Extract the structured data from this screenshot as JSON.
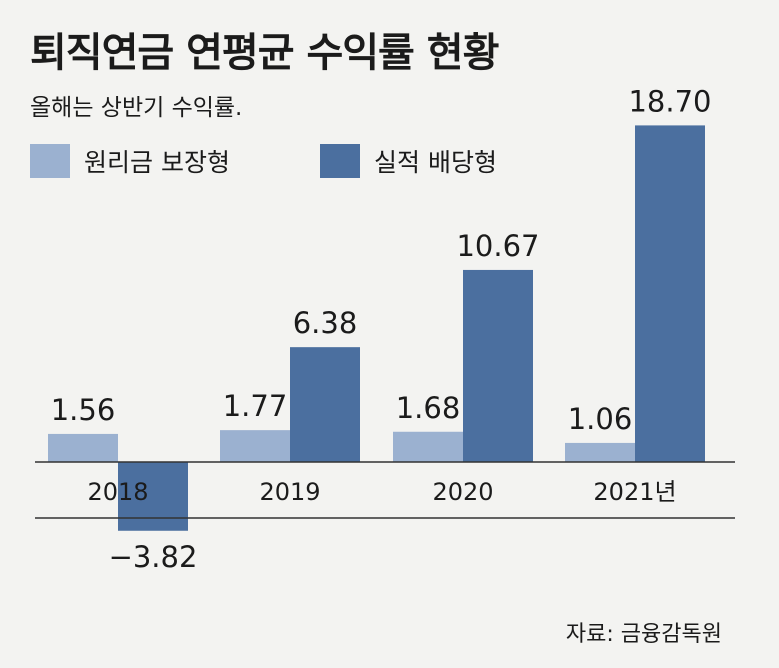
{
  "title": "퇴직연금 연평균 수익률 현황",
  "subtitle": "올해는 상반기 수익률.",
  "source": "자료: 금융감독원",
  "colors": {
    "background": "#f3f3f1",
    "principal_guaranteed": "#9bb1d0",
    "performance_dividend": "#4b6f9f",
    "axis": "#333333",
    "text": "#1b1b1b"
  },
  "chart_data": {
    "type": "bar",
    "categories": [
      "2018",
      "2019",
      "2020",
      "2021년"
    ],
    "series": [
      {
        "name": "원리금 보장형",
        "values": [
          1.56,
          1.77,
          1.68,
          1.06
        ],
        "labels": [
          "1.56",
          "1.77",
          "1.68",
          "1.06"
        ]
      },
      {
        "name": "실적 배당형",
        "values": [
          -3.82,
          6.38,
          10.67,
          18.7
        ],
        "labels": [
          "−3.82",
          "6.38",
          "10.67",
          "18.70"
        ]
      }
    ],
    "legend_placement": "top-left",
    "grid": false,
    "ylim": [
      -3.82,
      18.7
    ]
  }
}
